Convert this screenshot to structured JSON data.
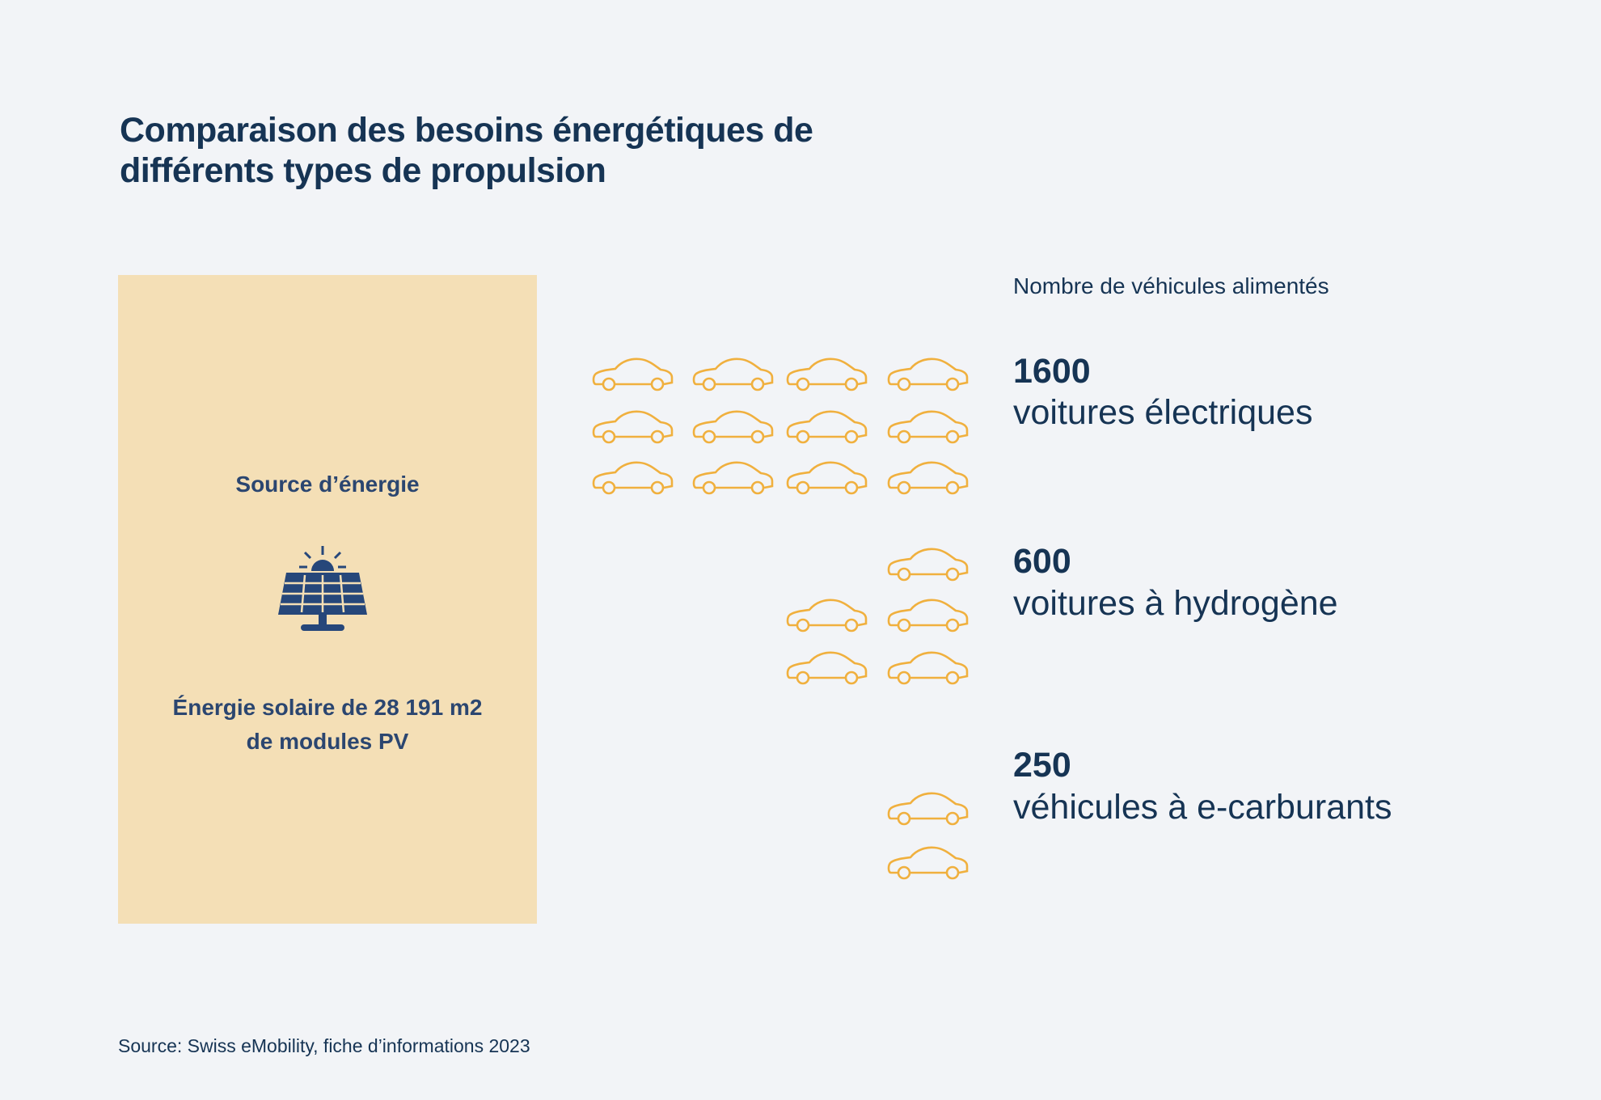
{
  "header": {
    "title": "Comparaison des besoins énergétiques de différents types de propulsion"
  },
  "source_box": {
    "title": "Source d’énergie",
    "description": [
      "Énergie solaire de 28 191 m2",
      "de modules PV"
    ]
  },
  "vehicles": {
    "heading": "Nombre de véhicules alimentés",
    "rows": [
      {
        "value": 1600,
        "label": "voitures électriques"
      },
      {
        "value": 600,
        "label": "voitures à hydrogène"
      },
      {
        "value": 250,
        "label": "véhicules à e-carburants"
      }
    ]
  },
  "footer": {
    "source": "Source: Swiss eMobility, fiche d’informations 2023"
  }
}
